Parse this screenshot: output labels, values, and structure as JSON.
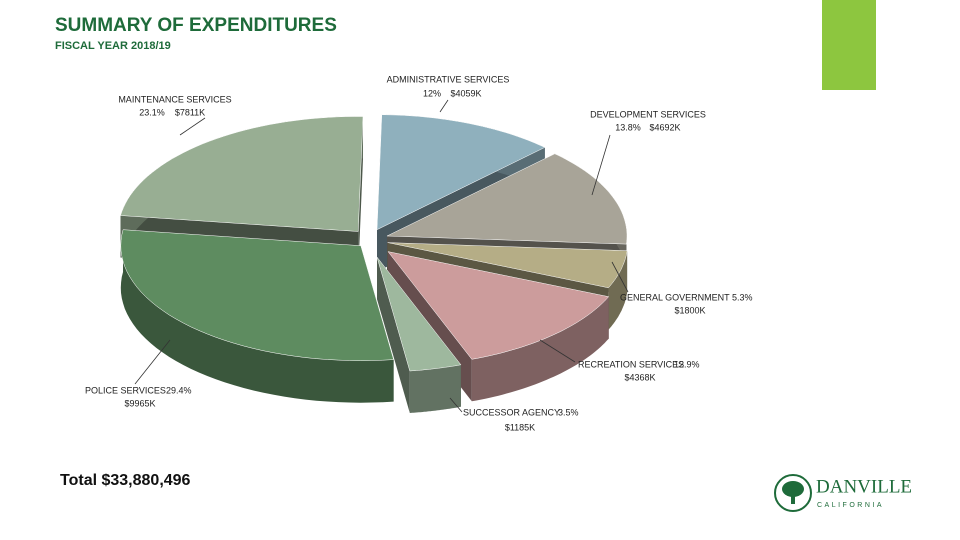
{
  "header": {
    "title": "SUMMARY OF EXPENDITURES",
    "subtitle": "FISCAL YEAR 2018/19"
  },
  "chart_data": {
    "type": "pie",
    "categories": [
      "ADMINISTRATIVE SERVICES",
      "DEVELOPMENT SERVICES",
      "GENERAL GOVERNMENT",
      "RECREATION SERVICES",
      "SUCCESSOR AGENCY",
      "POLICE SERVICES",
      "MAINTENANCE SERVICES"
    ],
    "values": [
      12,
      13.8,
      5.3,
      12.9,
      3.5,
      29.4,
      23.1
    ],
    "value_labels": [
      "12%",
      "13.8%",
      "5.3%",
      "12.9%",
      "3.5%",
      "29.4%",
      "23.1%"
    ],
    "amount_labels": [
      "$4059K",
      "$4692K",
      "$1800K",
      "$4368K",
      "$1185K",
      "$9965K",
      "$7811K"
    ],
    "colors": [
      "#8fb0bd",
      "#a8a498",
      "#b5ad86",
      "#cc9c9c",
      "#9eb89e",
      "#5e8c60",
      "#98ae93"
    ]
  },
  "footer": {
    "total": "Total $33,880,496",
    "logo_name": "DANVILLE",
    "logo_sub": "CALIFORNIA"
  }
}
